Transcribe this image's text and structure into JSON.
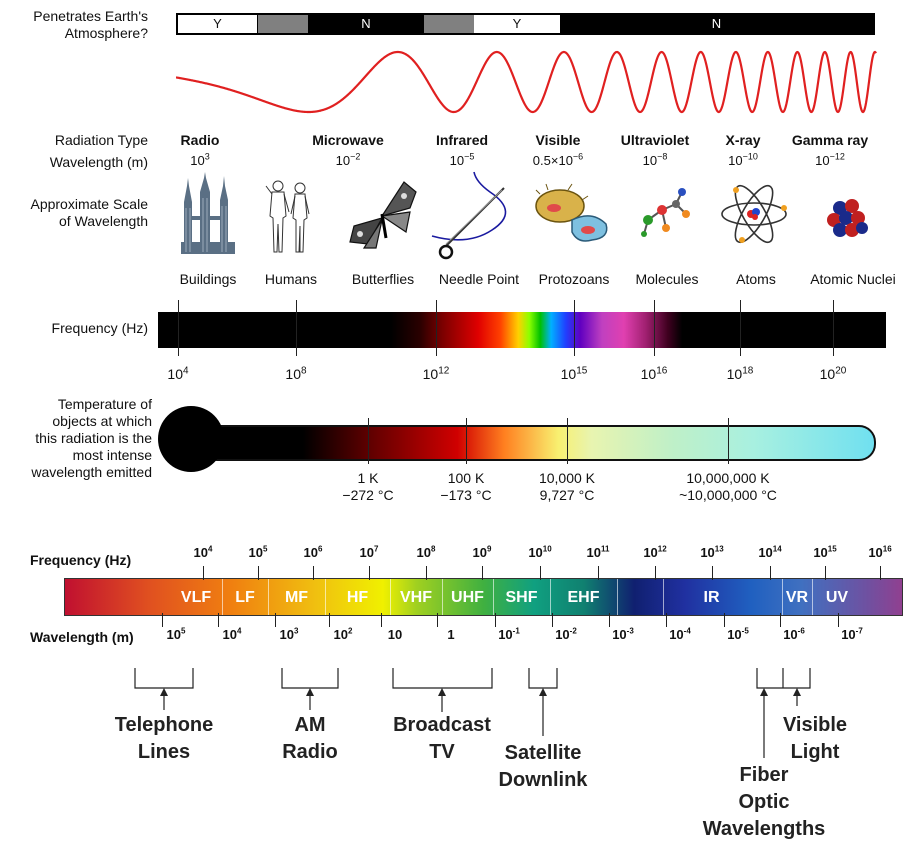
{
  "atmosphere": {
    "label_line1": "Penetrates Earth's",
    "label_line2": "Atmosphere?",
    "segments": [
      "Y",
      "N",
      "Y",
      "N"
    ]
  },
  "radiation_type_label": "Radiation Type",
  "wavelength_label": "Wavelength (m)",
  "scale_label_line1": "Approximate Scale",
  "scale_label_line2": "of Wavelength",
  "radiation_types": [
    {
      "name": "Radio",
      "mantissa": "10",
      "exp": "3"
    },
    {
      "name": "Microwave",
      "mantissa": "10",
      "exp": "−2"
    },
    {
      "name": "Infrared",
      "mantissa": "10",
      "exp": "−5"
    },
    {
      "name": "Visible",
      "mantissa": "0.5×10",
      "exp": "−6"
    },
    {
      "name": "Ultraviolet",
      "mantissa": "10",
      "exp": "−8"
    },
    {
      "name": "X-ray",
      "mantissa": "10",
      "exp": "−10"
    },
    {
      "name": "Gamma ray",
      "mantissa": "10",
      "exp": "−12"
    }
  ],
  "scale_objects": [
    "Buildings",
    "Humans",
    "Butterflies",
    "Needle Point",
    "Protozoans",
    "Molecules",
    "Atoms",
    "Atomic Nuclei"
  ],
  "scale_icons": [
    "buildings-icon",
    "humans-icon",
    "butterfly-icon",
    "needle-icon",
    "protozoa-icon",
    "molecule-icon",
    "atom-icon",
    "nucleus-icon"
  ],
  "frequency_label": "Frequency (Hz)",
  "frequency_ticks": [
    {
      "base": "10",
      "exp": "4"
    },
    {
      "base": "10",
      "exp": "8"
    },
    {
      "base": "10",
      "exp": "12"
    },
    {
      "base": "10",
      "exp": "15"
    },
    {
      "base": "10",
      "exp": "16"
    },
    {
      "base": "10",
      "exp": "18"
    },
    {
      "base": "10",
      "exp": "20"
    }
  ],
  "temperature_label": [
    "Temperature of",
    "objects at which",
    "this radiation is the",
    "most intense",
    "wavelength emitted"
  ],
  "temperatures": [
    {
      "k": "1 K",
      "c": "−272 °C"
    },
    {
      "k": "100 K",
      "c": "−173 °C"
    },
    {
      "k": "10,000 K",
      "c": "9,727 °C"
    },
    {
      "k": "10,000,000 K",
      "c": "~10,000,000 °C"
    }
  ],
  "bottom": {
    "frequency_label": "Frequency (Hz)",
    "wavelength_label": "Wavelength (m)",
    "freq_exps": [
      "4",
      "5",
      "6",
      "7",
      "8",
      "9",
      "10",
      "11",
      "12",
      "13",
      "14",
      "15",
      "16"
    ],
    "wavelength_ticks": [
      {
        "base": "10",
        "exp": "5"
      },
      {
        "base": "10",
        "exp": "4"
      },
      {
        "base": "10",
        "exp": "3"
      },
      {
        "base": "10",
        "exp": "2"
      },
      {
        "base": "10",
        "exp": ""
      },
      {
        "base": "1",
        "exp": ""
      },
      {
        "base": "10",
        "exp": "-1"
      },
      {
        "base": "10",
        "exp": "-2"
      },
      {
        "base": "10",
        "exp": "-3"
      },
      {
        "base": "10",
        "exp": "-4"
      },
      {
        "base": "10",
        "exp": "-5"
      },
      {
        "base": "10",
        "exp": "-6"
      },
      {
        "base": "10",
        "exp": "-7"
      }
    ],
    "bands": [
      "VLF",
      "LF",
      "MF",
      "HF",
      "VHF",
      "UHF",
      "SHF",
      "EHF",
      "IR",
      "VR",
      "UV"
    ],
    "applications": [
      {
        "line1": "Telephone",
        "line2": "Lines",
        "line3": ""
      },
      {
        "line1": "AM",
        "line2": "Radio",
        "line3": ""
      },
      {
        "line1": "Broadcast",
        "line2": "TV",
        "line3": ""
      },
      {
        "line1": "Satellite",
        "line2": "Downlink",
        "line3": ""
      },
      {
        "line1": "Fiber",
        "line2": "Optic",
        "line3": "Wavelengths"
      },
      {
        "line1": "Visible",
        "line2": "Light",
        "line3": ""
      }
    ]
  }
}
